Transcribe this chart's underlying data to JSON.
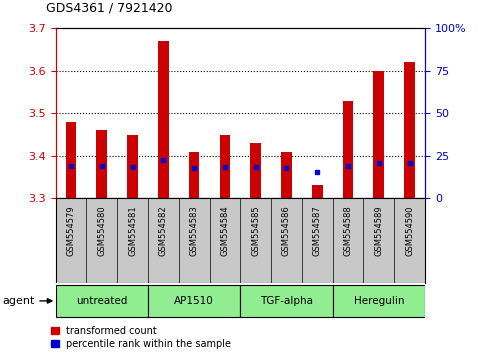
{
  "title": "GDS4361 / 7921420",
  "samples": [
    "GSM554579",
    "GSM554580",
    "GSM554581",
    "GSM554582",
    "GSM554583",
    "GSM554584",
    "GSM554585",
    "GSM554586",
    "GSM554587",
    "GSM554588",
    "GSM554589",
    "GSM554590"
  ],
  "red_values": [
    3.48,
    3.46,
    3.45,
    3.67,
    3.41,
    3.45,
    3.43,
    3.41,
    3.33,
    3.53,
    3.6,
    3.62
  ],
  "blue_values": [
    3.375,
    3.375,
    3.374,
    3.39,
    3.372,
    3.374,
    3.374,
    3.372,
    3.362,
    3.375,
    3.384,
    3.384
  ],
  "ylim_left": [
    3.3,
    3.7
  ],
  "ylim_right": [
    0,
    100
  ],
  "yticks_left": [
    3.3,
    3.4,
    3.5,
    3.6,
    3.7
  ],
  "yticks_right": [
    0,
    25,
    50,
    75,
    100
  ],
  "ytick_labels_right": [
    "0",
    "25",
    "50",
    "75",
    "100%"
  ],
  "grid_lines": [
    3.4,
    3.5,
    3.6
  ],
  "groups": [
    {
      "label": "untreated",
      "start": 0,
      "end": 2
    },
    {
      "label": "AP1510",
      "start": 3,
      "end": 5
    },
    {
      "label": "TGF-alpha",
      "start": 6,
      "end": 8
    },
    {
      "label": "Heregulin",
      "start": 9,
      "end": 11
    }
  ],
  "legend_red": "transformed count",
  "legend_blue": "percentile rank within the sample",
  "red_color": "#CC0000",
  "blue_color": "#0000CC",
  "bar_width": 0.35,
  "agent_label": "agent",
  "background_color": "#ffffff",
  "tick_area_color": "#c8c8c8",
  "group_color": "#90EE90",
  "group_color_alt": "#aaffaa"
}
